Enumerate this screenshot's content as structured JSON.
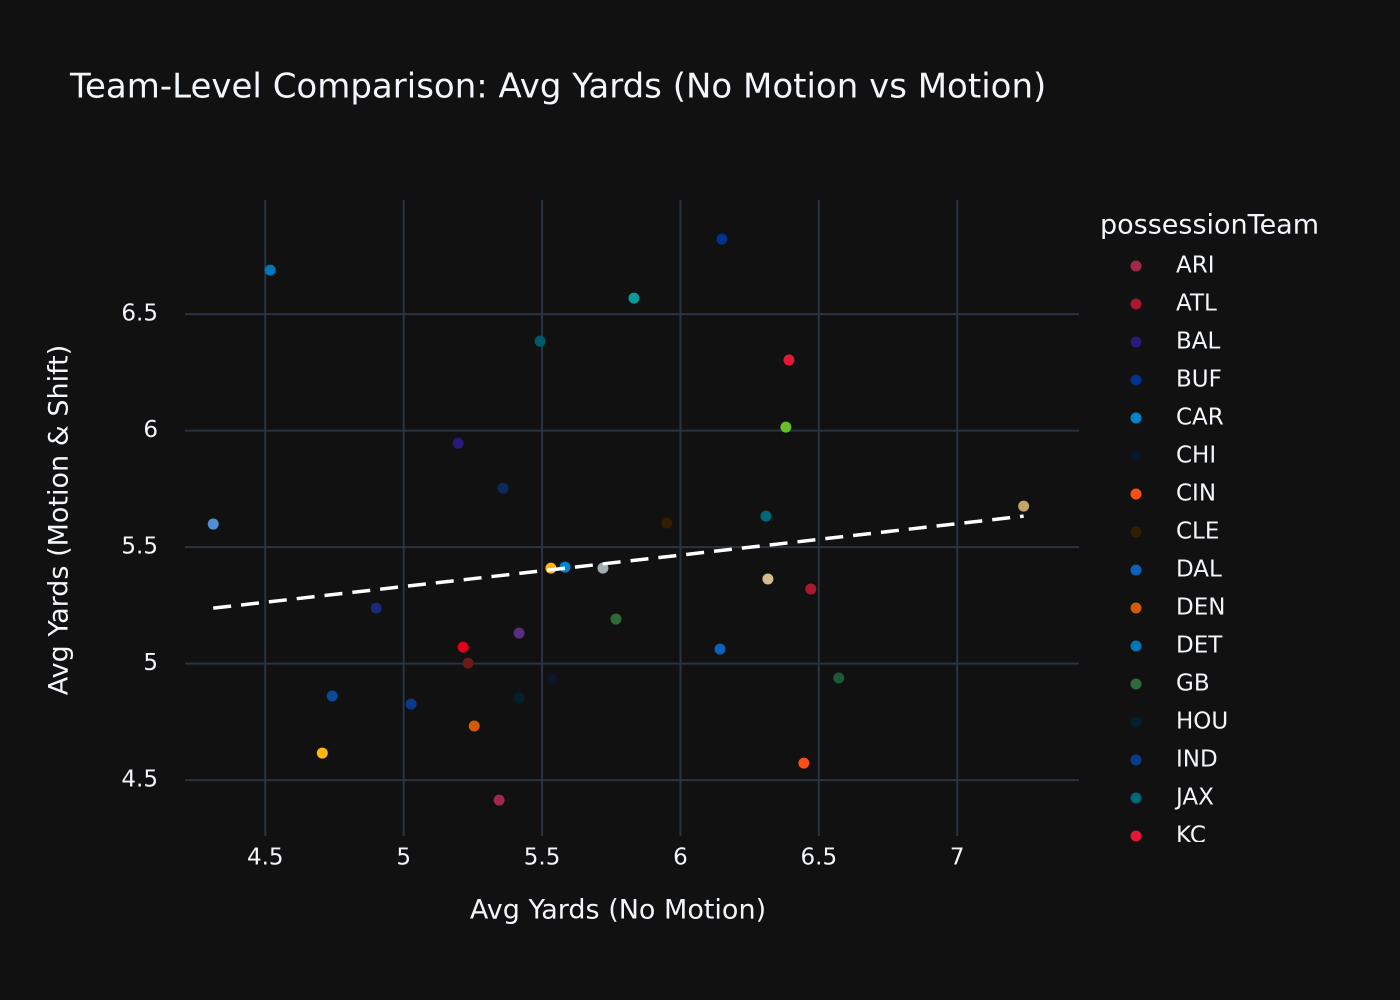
{
  "chart_data": {
    "type": "scatter",
    "title": "Team-Level Comparison: Avg Yards (No Motion vs Motion)",
    "x_label": "Avg Yards (No Motion)",
    "y_label": "Avg Yards (Motion & Shift)",
    "legend_title": "possessionTeam",
    "legend_position": "right",
    "grid": true,
    "xlim": [
      4.21,
      7.44
    ],
    "ylim": [
      4.26,
      6.99
    ],
    "xticks": [
      4.5,
      5,
      5.5,
      6,
      6.5,
      7
    ],
    "yticks": [
      4.5,
      5,
      5.5,
      6,
      6.5
    ],
    "series": [
      {
        "name": "ARI",
        "color": "#a0284a",
        "x": [
          5.345
        ],
        "y": [
          4.414
        ]
      },
      {
        "name": "ATL",
        "color": "#a71930",
        "x": [
          6.471
        ],
        "y": [
          5.32
        ]
      },
      {
        "name": "BAL",
        "color": "#2a1a78",
        "x": [
          5.197
        ],
        "y": [
          5.946
        ]
      },
      {
        "name": "BUF",
        "color": "#00338d",
        "x": [
          6.15
        ],
        "y": [
          6.822
        ]
      },
      {
        "name": "CAR",
        "color": "#0085ca",
        "x": [
          5.583
        ],
        "y": [
          5.414
        ]
      },
      {
        "name": "CHI",
        "color": "#0b162a",
        "x": [
          5.536
        ],
        "y": [
          4.934
        ]
      },
      {
        "name": "CIN",
        "color": "#fb4f14",
        "x": [
          6.446
        ],
        "y": [
          4.573
        ]
      },
      {
        "name": "CLE",
        "color": "#311d00",
        "x": [
          5.951
        ],
        "y": [
          5.603
        ]
      },
      {
        "name": "DAL",
        "color": "#0b62b8",
        "x": [
          6.143
        ],
        "y": [
          5.062
        ]
      },
      {
        "name": "DEN",
        "color": "#d45a0a",
        "x": [
          5.255
        ],
        "y": [
          4.732
        ]
      },
      {
        "name": "DET",
        "color": "#0076b6",
        "x": [
          4.518
        ],
        "y": [
          6.689
        ]
      },
      {
        "name": "GB",
        "color": "#2f6b39",
        "x": [
          5.767
        ],
        "y": [
          5.191
        ]
      },
      {
        "name": "HOU",
        "color": "#03202f",
        "x": [
          5.417
        ],
        "y": [
          4.852
        ]
      },
      {
        "name": "IND",
        "color": "#0a3a8a",
        "x": [
          5.027
        ],
        "y": [
          4.826
        ]
      },
      {
        "name": "JAX",
        "color": "#006778",
        "x": [
          6.309
        ],
        "y": [
          5.633
        ]
      },
      {
        "name": "KC",
        "color": "#e31837",
        "x": [
          6.392
        ],
        "y": [
          6.303
        ]
      },
      {
        "color": "#4f8fd6",
        "x": [
          4.312
        ],
        "y": [
          5.599
        ]
      },
      {
        "color": "#0a9a9a",
        "x": [
          5.832
        ],
        "y": [
          6.569
        ]
      },
      {
        "color": "#005a6a",
        "x": [
          5.493
        ],
        "y": [
          6.384
        ]
      },
      {
        "color": "#69be28",
        "x": [
          6.381
        ],
        "y": [
          6.015
        ]
      },
      {
        "color": "#0a2a5a",
        "x": [
          5.359
        ],
        "y": [
          5.753
        ]
      },
      {
        "color": "#c4a46a",
        "x": [
          7.24
        ],
        "y": [
          5.676
        ]
      },
      {
        "color": "#ffb612",
        "x": [
          5.532
        ],
        "y": [
          5.41
        ]
      },
      {
        "color": "#a5acaf",
        "x": [
          5.72
        ],
        "y": [
          5.41
        ]
      },
      {
        "color": "#d3bc8d",
        "x": [
          6.316
        ],
        "y": [
          5.363
        ]
      },
      {
        "color": "#1a2a7a",
        "x": [
          4.901
        ],
        "y": [
          5.238
        ]
      },
      {
        "color": "#5a2d81",
        "x": [
          5.417
        ],
        "y": [
          5.131
        ]
      },
      {
        "color": "#e0001a",
        "x": [
          5.215
        ],
        "y": [
          5.071
        ]
      },
      {
        "color": "#6a1a1a",
        "x": [
          5.233
        ],
        "y": [
          5.002
        ]
      },
      {
        "color": "#1a5a3a",
        "x": [
          6.572
        ],
        "y": [
          4.938
        ]
      },
      {
        "color": "#0a4a9a",
        "x": [
          4.742
        ],
        "y": [
          4.861
        ]
      },
      {
        "color": "#ffb612",
        "x": [
          4.706
        ],
        "y": [
          4.616
        ]
      }
    ],
    "trendline": {
      "color": "#ffffff",
      "x": [
        4.312,
        7.24
      ],
      "y": [
        5.238,
        5.633
      ]
    }
  }
}
